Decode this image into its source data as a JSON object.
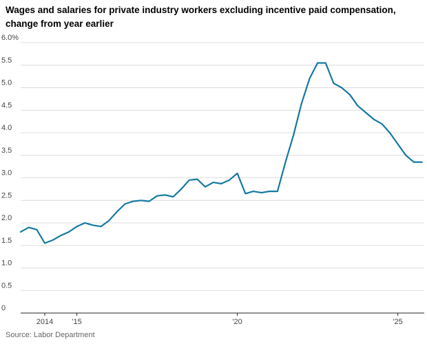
{
  "header": {
    "title": "Wages and salaries for private industry workers excluding incentive paid compensation, change from year earlier"
  },
  "footer": {
    "source": "Source: Labor Department"
  },
  "chart_data": {
    "type": "line",
    "title": "Wages and salaries for private industry workers excluding incentive paid compensation, change from year earlier",
    "ylabel": "",
    "xlabel": "",
    "ylim": [
      0,
      6
    ],
    "yticks": [
      0,
      0.5,
      1.0,
      1.5,
      2.0,
      2.5,
      3.0,
      3.5,
      4.0,
      4.5,
      5.0,
      5.5,
      6.0
    ],
    "ytick_labels": [
      "0",
      "0.5",
      "1.0",
      "1.5",
      "2.0",
      "2.5",
      "3.0",
      "3.5",
      "4.0",
      "4.5",
      "5.0",
      "5.5",
      "6.0%"
    ],
    "xticks": [
      {
        "year": 2014,
        "label": "2014"
      },
      {
        "year": 2015,
        "label": "'15"
      },
      {
        "year": 2020,
        "label": "'20"
      },
      {
        "year": 2025,
        "label": "'25"
      }
    ],
    "grid": true,
    "legend": "none",
    "line_color": "#1478a0",
    "grid_color": "#dcdcdc",
    "axis_color": "#222222",
    "label_color": "#444444",
    "series": [
      {
        "name": "Wages and salaries, change from year earlier (%)",
        "x": [
          2013.25,
          2013.5,
          2013.75,
          2014.0,
          2014.25,
          2014.5,
          2014.75,
          2015.0,
          2015.25,
          2015.5,
          2015.75,
          2016.0,
          2016.25,
          2016.5,
          2016.75,
          2017.0,
          2017.25,
          2017.5,
          2017.75,
          2018.0,
          2018.25,
          2018.5,
          2018.75,
          2019.0,
          2019.25,
          2019.5,
          2019.75,
          2020.0,
          2020.25,
          2020.5,
          2020.75,
          2021.0,
          2021.25,
          2021.5,
          2021.75,
          2022.0,
          2022.25,
          2022.5,
          2022.75,
          2023.0,
          2023.25,
          2023.5,
          2023.75,
          2024.0,
          2024.25,
          2024.5,
          2024.75,
          2025.0,
          2025.25,
          2025.5,
          2025.75
        ],
        "values": [
          1.8,
          1.9,
          1.85,
          1.55,
          1.62,
          1.72,
          1.8,
          1.92,
          2.0,
          1.95,
          1.92,
          2.05,
          2.25,
          2.42,
          2.48,
          2.5,
          2.48,
          2.6,
          2.62,
          2.58,
          2.75,
          2.95,
          2.97,
          2.8,
          2.9,
          2.87,
          2.95,
          3.1,
          2.65,
          2.7,
          2.67,
          2.7,
          2.7,
          3.35,
          3.95,
          4.65,
          5.2,
          5.55,
          5.55,
          5.1,
          5.0,
          4.85,
          4.6,
          4.45,
          4.3,
          4.2,
          4.0,
          3.75,
          3.5,
          3.35,
          3.35
        ]
      }
    ]
  }
}
